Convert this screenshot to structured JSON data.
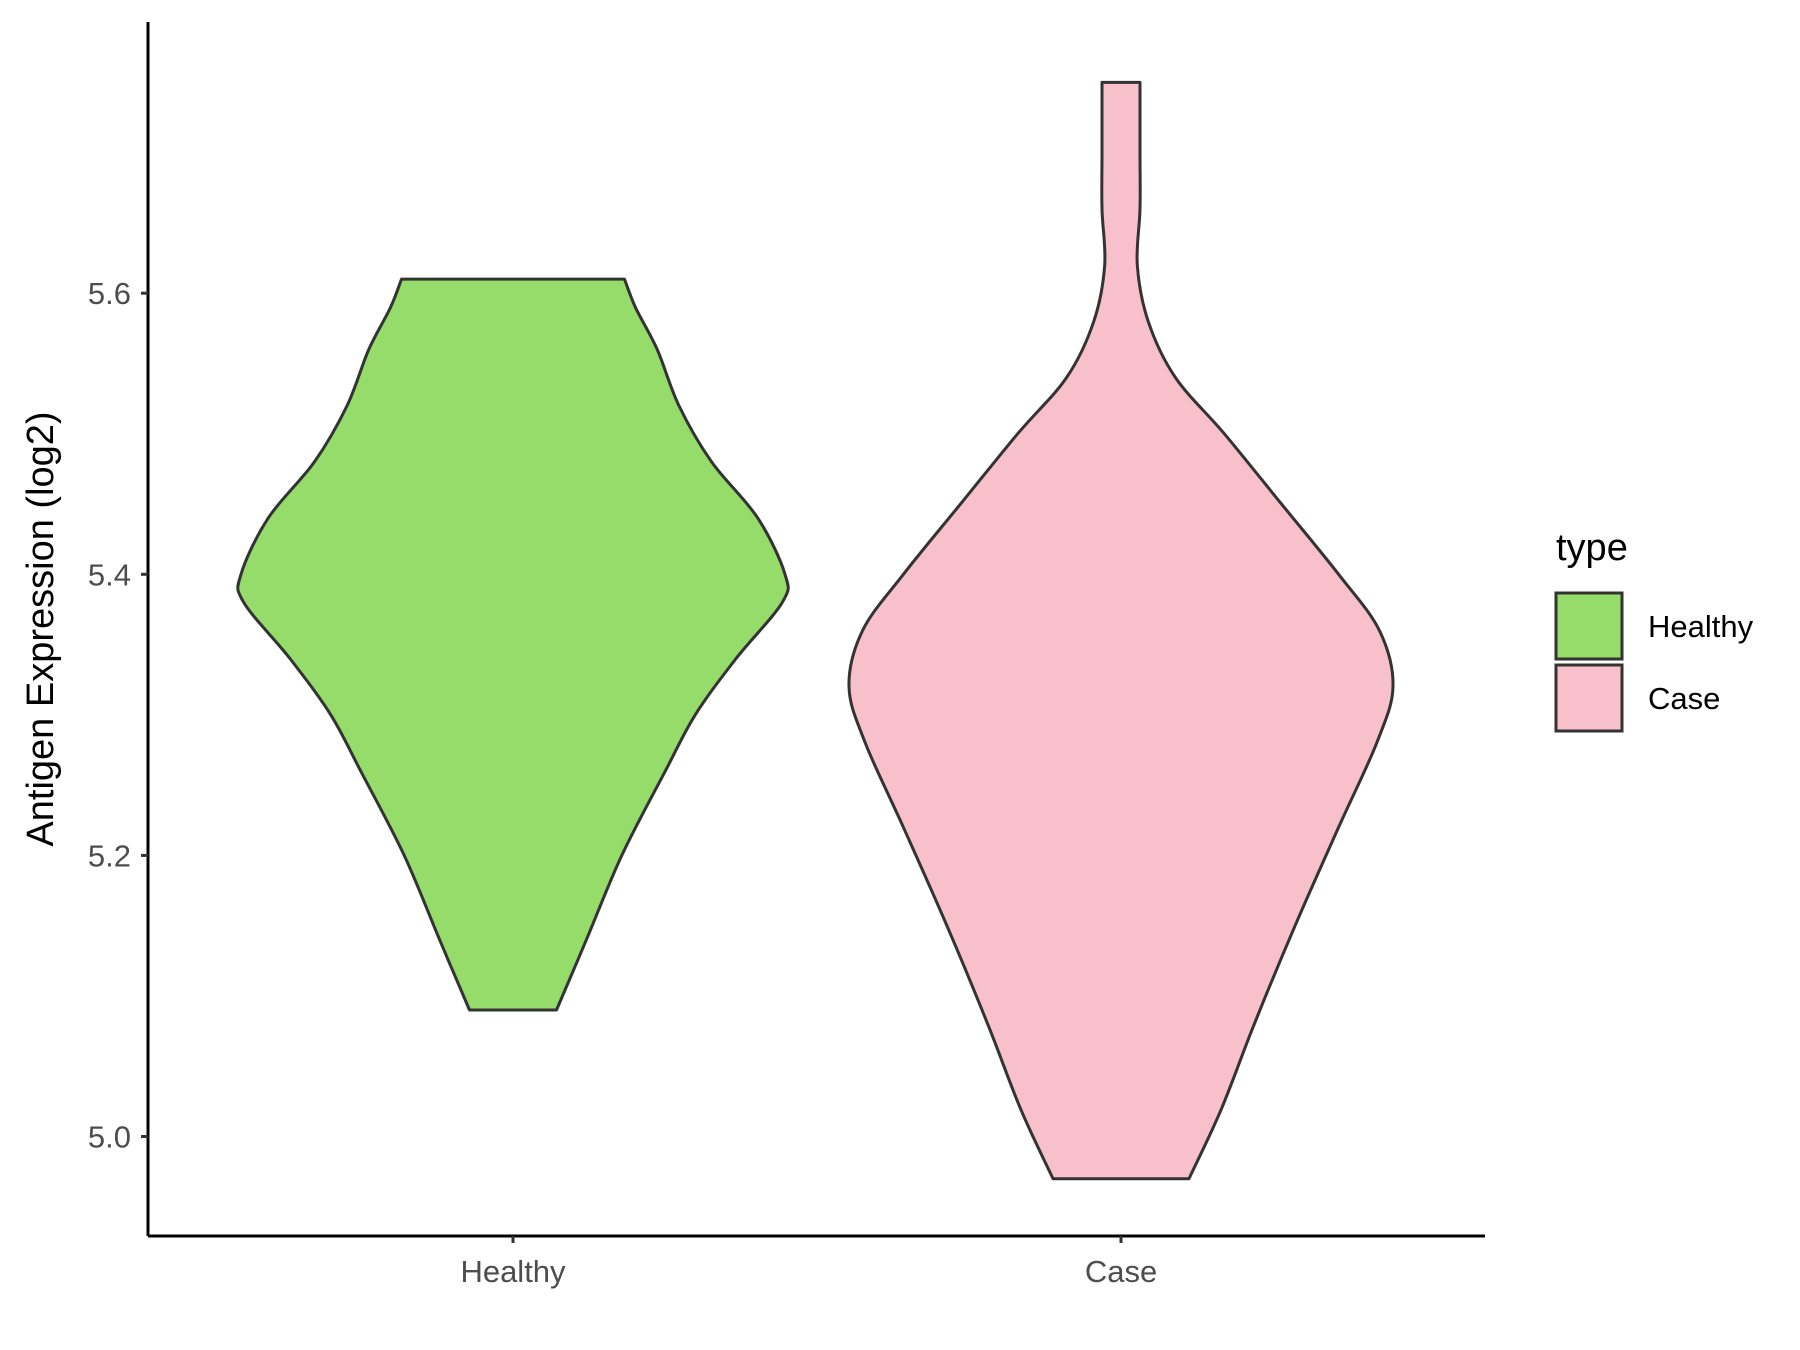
{
  "chart_data": {
    "type": "violin",
    "title": "",
    "xlabel": "",
    "ylabel": "Antigen Expression (log2)",
    "ylim": [
      4.93,
      5.79
    ],
    "yticks": [
      "5.0",
      "5.2",
      "5.4",
      "5.6"
    ],
    "categories": [
      "Healthy",
      "Case"
    ],
    "legend": {
      "title": "type",
      "position": "right"
    },
    "series": [
      {
        "name": "Healthy",
        "color": "#95DC6A",
        "min": 5.09,
        "max": 5.61,
        "density_profile": [
          [
            5.09,
            0.16
          ],
          [
            5.14,
            0.27
          ],
          [
            5.2,
            0.4
          ],
          [
            5.26,
            0.56
          ],
          [
            5.3,
            0.67
          ],
          [
            5.34,
            0.82
          ],
          [
            5.38,
            0.99
          ],
          [
            5.4,
            1.0
          ],
          [
            5.44,
            0.9
          ],
          [
            5.48,
            0.73
          ],
          [
            5.52,
            0.61
          ],
          [
            5.56,
            0.53
          ],
          [
            5.59,
            0.45
          ],
          [
            5.61,
            0.41
          ]
        ]
      },
      {
        "name": "Case",
        "color": "#F7C0CB",
        "min": 4.97,
        "max": 5.75,
        "density_profile": [
          [
            4.97,
            0.25
          ],
          [
            5.02,
            0.37
          ],
          [
            5.08,
            0.49
          ],
          [
            5.15,
            0.64
          ],
          [
            5.22,
            0.8
          ],
          [
            5.28,
            0.94
          ],
          [
            5.32,
            1.0
          ],
          [
            5.36,
            0.95
          ],
          [
            5.4,
            0.8
          ],
          [
            5.45,
            0.59
          ],
          [
            5.5,
            0.38
          ],
          [
            5.54,
            0.2
          ],
          [
            5.58,
            0.1
          ],
          [
            5.62,
            0.06
          ],
          [
            5.66,
            0.07
          ],
          [
            5.7,
            0.07
          ],
          [
            5.75,
            0.07
          ]
        ]
      }
    ]
  }
}
